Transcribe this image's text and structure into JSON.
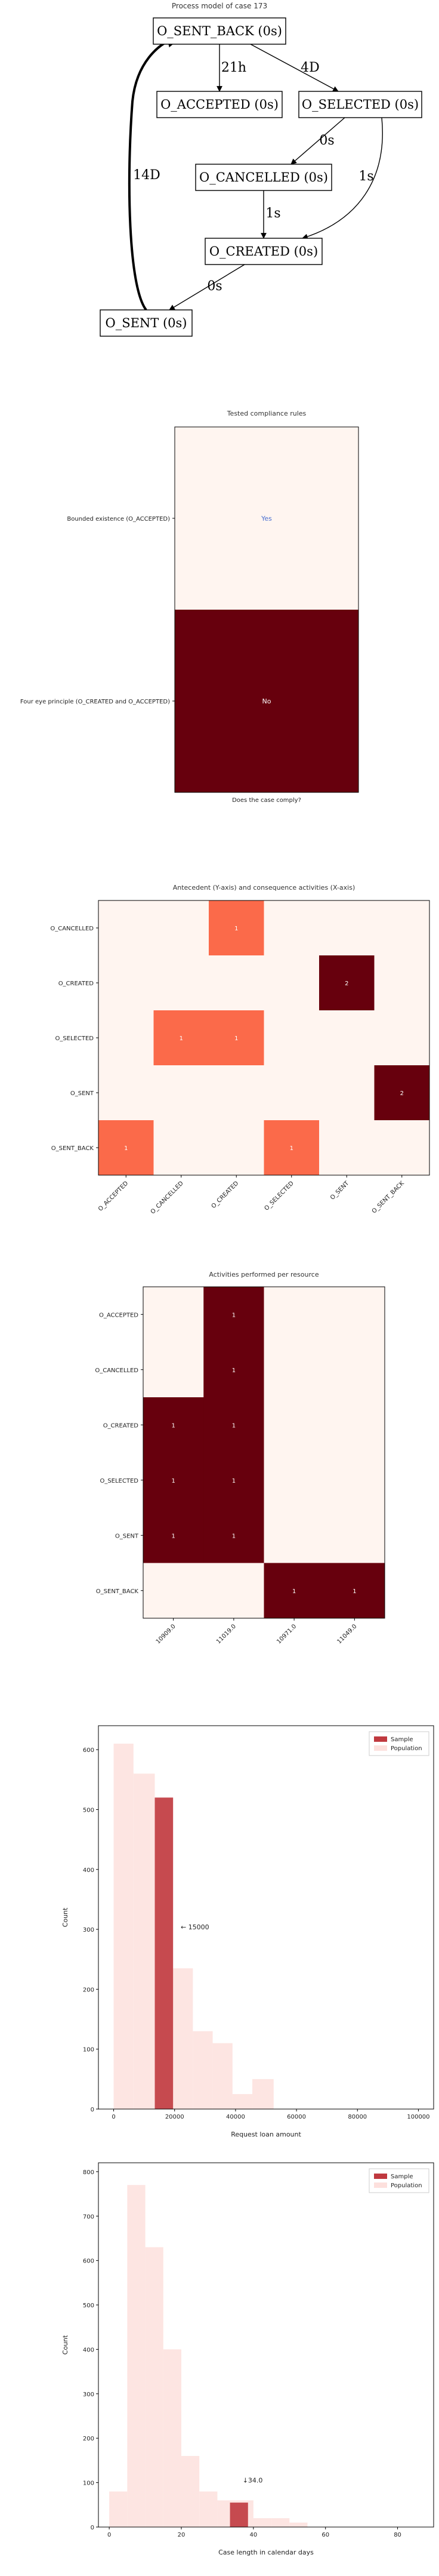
{
  "chart_data": [
    {
      "type": "diagram",
      "title": "Process model of case 173",
      "nodes": [
        {
          "id": "O_SENT_BACK",
          "label": "O_SENT_BACK (0s)"
        },
        {
          "id": "O_ACCEPTED",
          "label": "O_ACCEPTED (0s)"
        },
        {
          "id": "O_SELECTED",
          "label": "O_SELECTED (0s)"
        },
        {
          "id": "O_CANCELLED",
          "label": "O_CANCELLED (0s)"
        },
        {
          "id": "O_CREATED",
          "label": "O_CREATED (0s)"
        },
        {
          "id": "O_SENT",
          "label": "O_SENT (0s)"
        }
      ],
      "edges": [
        {
          "from": "O_SENT_BACK",
          "to": "O_ACCEPTED",
          "label": "21h"
        },
        {
          "from": "O_SENT_BACK",
          "to": "O_SELECTED",
          "label": "4D"
        },
        {
          "from": "O_SELECTED",
          "to": "O_CANCELLED",
          "label": "0s"
        },
        {
          "from": "O_SELECTED",
          "to": "O_CREATED",
          "label": "1s"
        },
        {
          "from": "O_CANCELLED",
          "to": "O_CREATED",
          "label": "1s"
        },
        {
          "from": "O_CREATED",
          "to": "O_SENT",
          "label": "0s"
        },
        {
          "from": "O_SENT",
          "to": "O_SENT_BACK",
          "label": "14D"
        }
      ]
    },
    {
      "type": "heatmap",
      "title": "Tested compliance rules",
      "xlabel": "Does the case comply?",
      "rows": [
        "Bounded existence (O_ACCEPTED)",
        "Four eye principle (O_CREATED and O_ACCEPTED)"
      ],
      "cells": [
        "Yes",
        "No"
      ],
      "colors": [
        "#fff5f0",
        "#67000d"
      ],
      "text_colors": [
        "#4a6fd0",
        "#ffffff"
      ]
    },
    {
      "type": "heatmap",
      "title": "Antecedent (Y-axis) and consequence activities (X-axis)",
      "x": [
        "O_ACCEPTED",
        "O_CANCELLED",
        "O_CREATED",
        "O_SELECTED",
        "O_SENT",
        "O_SENT_BACK"
      ],
      "y": [
        "O_CANCELLED",
        "O_CREATED",
        "O_SELECTED",
        "O_SENT",
        "O_SENT_BACK"
      ],
      "values": [
        [
          0,
          0,
          1,
          0,
          0,
          0
        ],
        [
          0,
          0,
          0,
          0,
          2,
          0
        ],
        [
          0,
          1,
          1,
          0,
          0,
          0
        ],
        [
          0,
          0,
          0,
          0,
          0,
          2
        ],
        [
          1,
          0,
          0,
          1,
          0,
          0
        ]
      ]
    },
    {
      "type": "heatmap",
      "title": "Activities performed per resource",
      "x": [
        "10909.0",
        "11019.0",
        "10971.0",
        "11049.0"
      ],
      "y": [
        "O_ACCEPTED",
        "O_CANCELLED",
        "O_CREATED",
        "O_SELECTED",
        "O_SENT",
        "O_SENT_BACK"
      ],
      "values": [
        [
          0,
          1,
          0,
          0
        ],
        [
          0,
          1,
          0,
          0
        ],
        [
          1,
          1,
          0,
          0
        ],
        [
          1,
          1,
          0,
          0
        ],
        [
          1,
          1,
          0,
          0
        ],
        [
          0,
          0,
          1,
          1
        ]
      ]
    },
    {
      "type": "bar",
      "title": "",
      "xlabel": "Request loan amount",
      "ylabel": "Count",
      "xlim": [
        -5000,
        105000
      ],
      "ylim": [
        0,
        640
      ],
      "xticks": [
        0,
        20000,
        40000,
        60000,
        80000,
        100000
      ],
      "yticks": [
        0,
        100,
        200,
        300,
        400,
        500,
        600
      ],
      "legend": "top-right",
      "series": [
        {
          "name": "Sample",
          "color": "#c0393f",
          "bins": [
            [
              13500,
              19500,
              520
            ]
          ]
        },
        {
          "name": "Population",
          "color": "#fde0dd",
          "bins": [
            [
              0,
              6500,
              610
            ],
            [
              6500,
              13500,
              560
            ],
            [
              13500,
              19500,
              520
            ],
            [
              19500,
              26000,
              235
            ],
            [
              26000,
              32500,
              130
            ],
            [
              32500,
              39000,
              110
            ],
            [
              39000,
              45500,
              25
            ],
            [
              45500,
              52500,
              50
            ]
          ]
        }
      ],
      "annotation": {
        "text": "← 15000",
        "x": 22000,
        "y": 300
      }
    },
    {
      "type": "bar",
      "title": "",
      "xlabel": "Case length in calendar days",
      "ylabel": "Count",
      "xlim": [
        -3,
        90
      ],
      "ylim": [
        0,
        820
      ],
      "xticks": [
        0,
        20,
        40,
        60,
        80
      ],
      "yticks": [
        0,
        100,
        200,
        300,
        400,
        500,
        600,
        700,
        800
      ],
      "legend": "top-right",
      "series": [
        {
          "name": "Sample",
          "color": "#c0393f",
          "bins": [
            [
              33.5,
              38.5,
              55
            ]
          ]
        },
        {
          "name": "Population",
          "color": "#fde0dd",
          "bins": [
            [
              0,
              5,
              80
            ],
            [
              5,
              10,
              770
            ],
            [
              10,
              15,
              630
            ],
            [
              15,
              20,
              400
            ],
            [
              20,
              25,
              160
            ],
            [
              25,
              30,
              80
            ],
            [
              30,
              35,
              60
            ],
            [
              35,
              40,
              60
            ],
            [
              40,
              45,
              20
            ],
            [
              45,
              50,
              20
            ],
            [
              50,
              55,
              10
            ]
          ]
        }
      ],
      "annotation": {
        "text": "↓34.0",
        "x": 37,
        "y": 100
      }
    }
  ]
}
